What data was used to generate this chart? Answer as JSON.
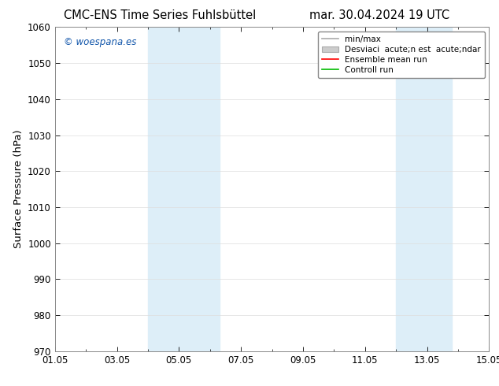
{
  "title_left": "CMC-ENS Time Series Fuhlsbüttel",
  "title_right": "mar. 30.04.2024 19 UTC",
  "ylabel": "Surface Pressure (hPa)",
  "ylim": [
    970,
    1060
  ],
  "yticks": [
    970,
    980,
    990,
    1000,
    1010,
    1020,
    1030,
    1040,
    1050,
    1060
  ],
  "xlim": [
    0,
    14
  ],
  "xtick_positions": [
    0,
    2,
    4,
    6,
    8,
    10,
    12,
    14
  ],
  "xtick_labels": [
    "01.05",
    "03.05",
    "05.05",
    "07.05",
    "09.05",
    "11.05",
    "13.05",
    "15.05"
  ],
  "shaded_regions": [
    {
      "xmin": 3.0,
      "xmax": 5.3
    },
    {
      "xmin": 11.0,
      "xmax": 12.8
    }
  ],
  "shade_color": "#ddeef8",
  "watermark_text": "© woespana.es",
  "watermark_color": "#1155aa",
  "legend_labels": [
    "min/max",
    "Desviaci  acute;n est  acute;ndar",
    "Ensemble mean run",
    "Controll run"
  ],
  "legend_colors": [
    "#999999",
    "#bbbbbb",
    "#ff0000",
    "#00bb00"
  ],
  "background_color": "#ffffff",
  "plot_bg_color": "#ffffff",
  "grid_color": "#dddddd",
  "title_fontsize": 10.5,
  "tick_fontsize": 8.5,
  "ylabel_fontsize": 9.5
}
